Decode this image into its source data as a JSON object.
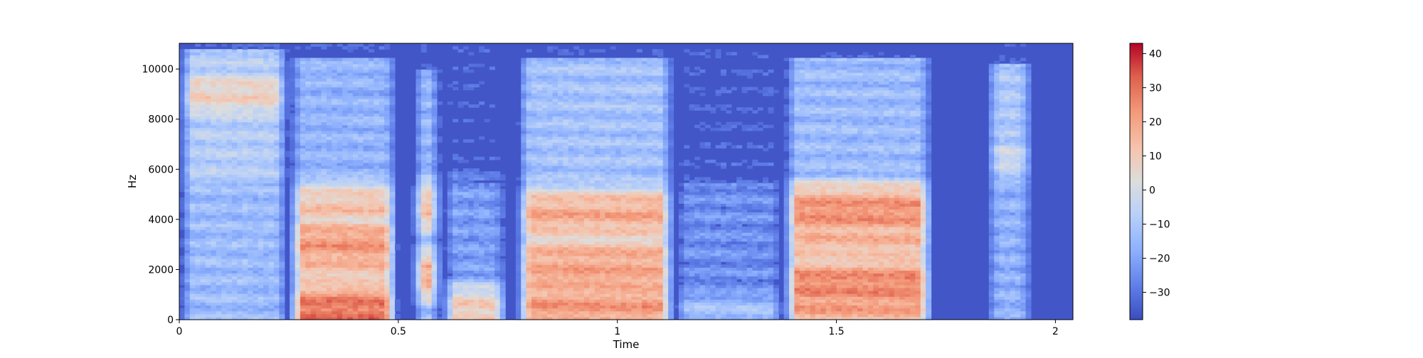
{
  "chart_data": {
    "type": "heatmap",
    "title": "",
    "xlabel": "Time",
    "ylabel": "Hz",
    "xlim": [
      0,
      2.04
    ],
    "ylim": [
      0,
      11025
    ],
    "x_ticks": [
      {
        "value": 0,
        "label": "0"
      },
      {
        "value": 0.5,
        "label": "0.5"
      },
      {
        "value": 1,
        "label": "1"
      },
      {
        "value": 1.5,
        "label": "1.5"
      },
      {
        "value": 2,
        "label": "2"
      }
    ],
    "y_ticks": [
      {
        "value": 0,
        "label": "0"
      },
      {
        "value": 2000,
        "label": "2000"
      },
      {
        "value": 4000,
        "label": "4000"
      },
      {
        "value": 6000,
        "label": "6000"
      },
      {
        "value": 8000,
        "label": "8000"
      },
      {
        "value": 10000,
        "label": "10000"
      }
    ],
    "colormap": "coolwarm",
    "colorbar": {
      "range": [
        -38,
        43
      ],
      "ticks": [
        {
          "value": 40,
          "label": "40"
        },
        {
          "value": 30,
          "label": "30"
        },
        {
          "value": 20,
          "label": "20"
        },
        {
          "value": 10,
          "label": "10"
        },
        {
          "value": 0,
          "label": "0"
        },
        {
          "value": -10,
          "label": "−10"
        },
        {
          "value": -20,
          "label": "−20"
        },
        {
          "value": -30,
          "label": "−30"
        }
      ]
    },
    "segments": [
      {
        "t0": 0.0,
        "t1": 0.25,
        "base": -14,
        "hf": -8,
        "hf_top": 10800,
        "hot": [
          {
            "f": 9000,
            "v": 8
          }
        ]
      },
      {
        "t0": 0.25,
        "t1": 0.5,
        "base": -14,
        "hf": -16,
        "hf_top": 10400,
        "hot": [
          {
            "f": 300,
            "v": 30
          },
          {
            "f": 2200,
            "v": 15
          },
          {
            "f": 3000,
            "v": 22
          },
          {
            "f": 4500,
            "v": 12
          }
        ]
      },
      {
        "t0": 0.53,
        "t1": 0.6,
        "base": -13,
        "hf": -16,
        "hf_top": 10000,
        "hot": [
          {
            "f": 1800,
            "v": 18
          },
          {
            "f": 4500,
            "v": 14
          }
        ]
      },
      {
        "t0": 0.6,
        "t1": 0.75,
        "base": -22,
        "hf": -30,
        "hf_top": 6000,
        "hot": [
          {
            "f": 400,
            "v": 10
          }
        ]
      },
      {
        "t0": 0.77,
        "t1": 1.13,
        "base": -12,
        "hf": -12,
        "hf_top": 10400,
        "hot": [
          {
            "f": 500,
            "v": 22
          },
          {
            "f": 1800,
            "v": 20
          },
          {
            "f": 2400,
            "v": 18
          },
          {
            "f": 4200,
            "v": 18
          }
        ]
      },
      {
        "t0": 1.13,
        "t1": 1.38,
        "base": -25,
        "hf": -35,
        "hf_top": 7000,
        "hot": [
          {
            "f": 300,
            "v": -12
          }
        ]
      },
      {
        "t0": 1.38,
        "t1": 1.72,
        "base": -12,
        "hf": -14,
        "hf_top": 10500,
        "hot": [
          {
            "f": 700,
            "v": 22
          },
          {
            "f": 1400,
            "v": 26
          },
          {
            "f": 3200,
            "v": 16
          },
          {
            "f": 4300,
            "v": 24
          }
        ]
      },
      {
        "t0": 1.84,
        "t1": 1.95,
        "base": -17,
        "hf": -10,
        "hf_top": 10200,
        "hot": [
          {
            "f": 6500,
            "v": -2
          }
        ]
      }
    ]
  }
}
